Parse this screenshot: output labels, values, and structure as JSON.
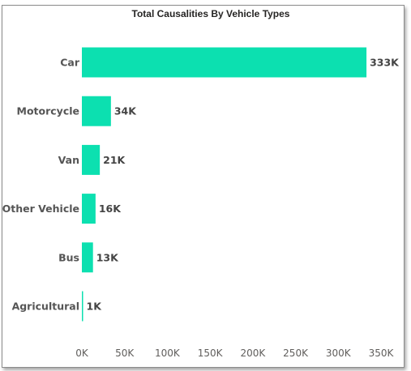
{
  "chart_data": {
    "type": "bar",
    "orientation": "horizontal",
    "title": "Total Causalities By Vehicle Types",
    "categories": [
      "Car",
      "Motorcycle",
      "Van",
      "Other Vehicle",
      "Bus",
      "Agricultural"
    ],
    "values": [
      333000,
      34000,
      21000,
      16000,
      13000,
      1000
    ],
    "data_labels": [
      "333K",
      "34K",
      "21K",
      "16K",
      "13K",
      "1K"
    ],
    "x_ticks": [
      0,
      50000,
      100000,
      150000,
      200000,
      250000,
      300000,
      350000
    ],
    "x_tick_labels": [
      "0K",
      "50K",
      "100K",
      "150K",
      "200K",
      "250K",
      "300K",
      "350K"
    ],
    "xlim": [
      0,
      350000
    ],
    "xlabel": "",
    "ylabel": "",
    "grid": false,
    "legend": "none",
    "bar_color": "#0ce0b0"
  }
}
